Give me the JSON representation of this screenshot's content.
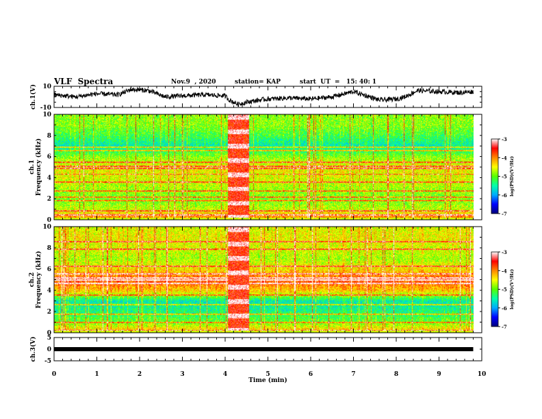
{
  "header": {
    "title": "VLF  Spectra",
    "date": "Nov.9  , 2020",
    "station": "station= KAP",
    "start": "start  UT  =   15: 40: 1"
  },
  "colors": {
    "colormap": [
      "#00007a",
      "#0000ff",
      "#00aaff",
      "#00ffaa",
      "#55ff00",
      "#ffff00",
      "#ff8800",
      "#ff0000",
      "#ffffff"
    ],
    "trace": "#000000",
    "background": "#ffffff"
  },
  "chart_data": [
    {
      "type": "line",
      "panel": "ch1-waveform",
      "ylabel": "ch.1(V)",
      "ylim": [
        -10,
        10
      ],
      "yticks": [
        "10",
        "-10"
      ],
      "xlim": [
        0,
        10
      ],
      "x": [
        0.0,
        0.5,
        1.0,
        1.5,
        1.8,
        2.2,
        2.6,
        3.0,
        3.5,
        4.0,
        4.1,
        4.3,
        4.5,
        4.8,
        5.0,
        5.5,
        6.0,
        6.5,
        7.0,
        7.3,
        7.6,
        8.0,
        8.2,
        8.5,
        9.0,
        9.5,
        9.8
      ],
      "y": [
        2,
        0,
        3,
        2,
        7,
        6,
        0,
        1,
        2,
        1,
        -3,
        -7,
        -5,
        -3,
        -2,
        -1,
        -2,
        0,
        5,
        1,
        -3,
        -2,
        0,
        6,
        5,
        4,
        5
      ]
    },
    {
      "type": "heatmap",
      "panel": "ch1-spectrogram",
      "ylabel": "ch.1\nFrequency (kHz)",
      "xlim": [
        0,
        10
      ],
      "ylim": [
        0,
        10
      ],
      "yticks": [
        "0",
        "2",
        "4",
        "6",
        "8",
        "10"
      ],
      "colorbar": {
        "label": "log(PSD)(V²/Hz)",
        "range": [
          -7,
          -3
        ],
        "ticks": [
          "-3",
          "-4",
          "-5",
          "-6",
          "-7"
        ]
      },
      "freq_profile_khz": [
        0,
        1,
        2,
        3,
        4,
        5,
        6,
        7,
        8,
        9,
        10
      ],
      "log_psd_profile": [
        -3.8,
        -4.7,
        -5.0,
        -4.8,
        -4.6,
        -4.5,
        -4.9,
        -5.6,
        -5.2,
        -4.9,
        -4.9
      ],
      "hum_lines_khz": [
        0.5,
        0.85,
        1.85,
        2.2,
        2.75,
        3.6,
        4.35,
        4.9,
        5.1,
        5.5,
        6.6,
        6.9
      ]
    },
    {
      "type": "heatmap",
      "panel": "ch2-spectrogram",
      "ylabel": "ch.2\nFrequency (kHz)",
      "xlim": [
        0,
        10
      ],
      "ylim": [
        0,
        10
      ],
      "yticks": [
        "0",
        "2",
        "4",
        "6",
        "8",
        "10"
      ],
      "colorbar": {
        "label": "log(PSD)(V²/Hz)",
        "range": [
          -7,
          -3
        ],
        "ticks": [
          "-3",
          "-4",
          "-5",
          "-6",
          "-7"
        ]
      },
      "freq_profile_khz": [
        0,
        1,
        2,
        3,
        4,
        5,
        6,
        7,
        8,
        9,
        10
      ],
      "log_psd_profile": [
        -4.0,
        -5.0,
        -5.4,
        -5.6,
        -4.3,
        -3.8,
        -4.4,
        -4.8,
        -4.6,
        -4.5,
        -4.6
      ],
      "hum_lines_khz": [
        0.2,
        1.0,
        1.8,
        2.7,
        3.6,
        4.7,
        5.0,
        5.2,
        5.6,
        6.3,
        7.9,
        8.6
      ]
    },
    {
      "type": "line",
      "panel": "ch3-waveform",
      "ylabel": "ch.3(V)",
      "ylim": [
        -5,
        5
      ],
      "yticks": [
        "5",
        "0",
        "-5"
      ],
      "xlim": [
        0,
        10
      ],
      "x": [
        0.0,
        9.8
      ],
      "y": [
        0,
        0
      ]
    },
    {
      "panel": "time-axis",
      "xlabel": "Time  (min)",
      "xlim": [
        0,
        10
      ],
      "xticks": [
        "0",
        "1",
        "2",
        "3",
        "4",
        "5",
        "6",
        "7",
        "8",
        "9",
        "10"
      ],
      "data_extent_min": [
        0,
        9.8
      ],
      "burst_interval_min": [
        4.05,
        4.55
      ]
    }
  ]
}
